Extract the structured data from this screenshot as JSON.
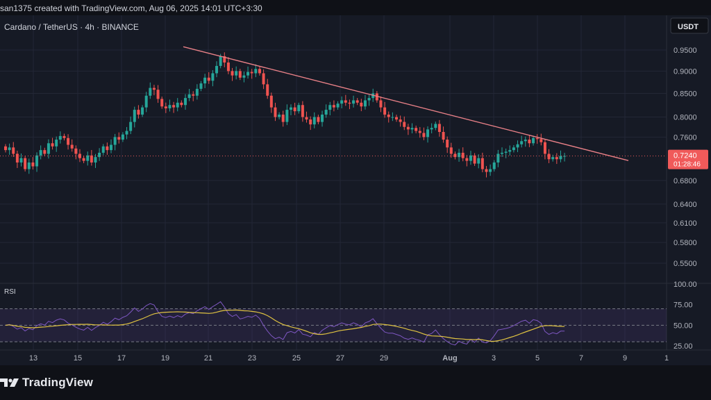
{
  "header": {
    "credit": "san1375 created with TradingView.com, Aug 06, 2025 14:01 UTC+3:30"
  },
  "chart": {
    "symbol_line": "Cardano / TetherUS · 4h · BINANCE",
    "currency_button": "USDT"
  },
  "footer": {
    "brand": "TradingView"
  },
  "colors": {
    "up": "#26a69a",
    "down": "#ef5350",
    "trendline": "#e88087",
    "price_tag": "#f05a5a",
    "rsi_line": "#7e57c2",
    "rsi_ma": "#e0c341",
    "grid": "#232736"
  },
  "chart_data": {
    "type": "candlestick",
    "title": "Cardano / TetherUS · 4h · BINANCE",
    "price_axis": {
      "scale": "log",
      "ticks": [
        "0.9500",
        "0.9000",
        "0.8500",
        "0.8000",
        "0.7600",
        "0.6800",
        "0.6400",
        "0.6100",
        "0.5800",
        "0.5500"
      ],
      "range": [
        0.53,
        1.0
      ]
    },
    "x_axis": {
      "ticks": [
        "13",
        "15",
        "17",
        "19",
        "21",
        "23",
        "25",
        "27",
        "29",
        "Aug",
        "3",
        "5",
        "7",
        "9",
        "1"
      ]
    },
    "last_price": {
      "value": "0.7240",
      "countdown": "01:28:46"
    },
    "candles_close": [
      0.735,
      0.74,
      0.728,
      0.712,
      0.72,
      0.7,
      0.712,
      0.705,
      0.725,
      0.735,
      0.728,
      0.748,
      0.742,
      0.755,
      0.762,
      0.758,
      0.745,
      0.738,
      0.728,
      0.72,
      0.715,
      0.725,
      0.712,
      0.722,
      0.73,
      0.742,
      0.735,
      0.745,
      0.76,
      0.755,
      0.765,
      0.772,
      0.79,
      0.815,
      0.805,
      0.82,
      0.845,
      0.862,
      0.858,
      0.838,
      0.822,
      0.818,
      0.825,
      0.82,
      0.83,
      0.825,
      0.84,
      0.848,
      0.845,
      0.86,
      0.872,
      0.885,
      0.878,
      0.895,
      0.912,
      0.935,
      0.92,
      0.9,
      0.89,
      0.9,
      0.885,
      0.89,
      0.898,
      0.895,
      0.905,
      0.895,
      0.87,
      0.845,
      0.82,
      0.8,
      0.805,
      0.79,
      0.815,
      0.82,
      0.812,
      0.825,
      0.8,
      0.795,
      0.785,
      0.8,
      0.79,
      0.805,
      0.815,
      0.825,
      0.82,
      0.828,
      0.835,
      0.83,
      0.828,
      0.835,
      0.83,
      0.822,
      0.835,
      0.84,
      0.85,
      0.835,
      0.82,
      0.805,
      0.8,
      0.8,
      0.795,
      0.79,
      0.78,
      0.775,
      0.778,
      0.772,
      0.768,
      0.76,
      0.775,
      0.778,
      0.786,
      0.77,
      0.755,
      0.74,
      0.728,
      0.722,
      0.73,
      0.72,
      0.715,
      0.725,
      0.71,
      0.72,
      0.7,
      0.695,
      0.7,
      0.712,
      0.728,
      0.73,
      0.732,
      0.735,
      0.74,
      0.746,
      0.752,
      0.755,
      0.748,
      0.758,
      0.756,
      0.75,
      0.728,
      0.718,
      0.722,
      0.718,
      0.724,
      0.724
    ],
    "rsi": {
      "label": "RSI",
      "axis_ticks": [
        "100.00",
        "75.00",
        "50.00",
        "25.00"
      ],
      "levels": [
        70,
        50,
        30
      ],
      "range": [
        20,
        100
      ]
    }
  }
}
